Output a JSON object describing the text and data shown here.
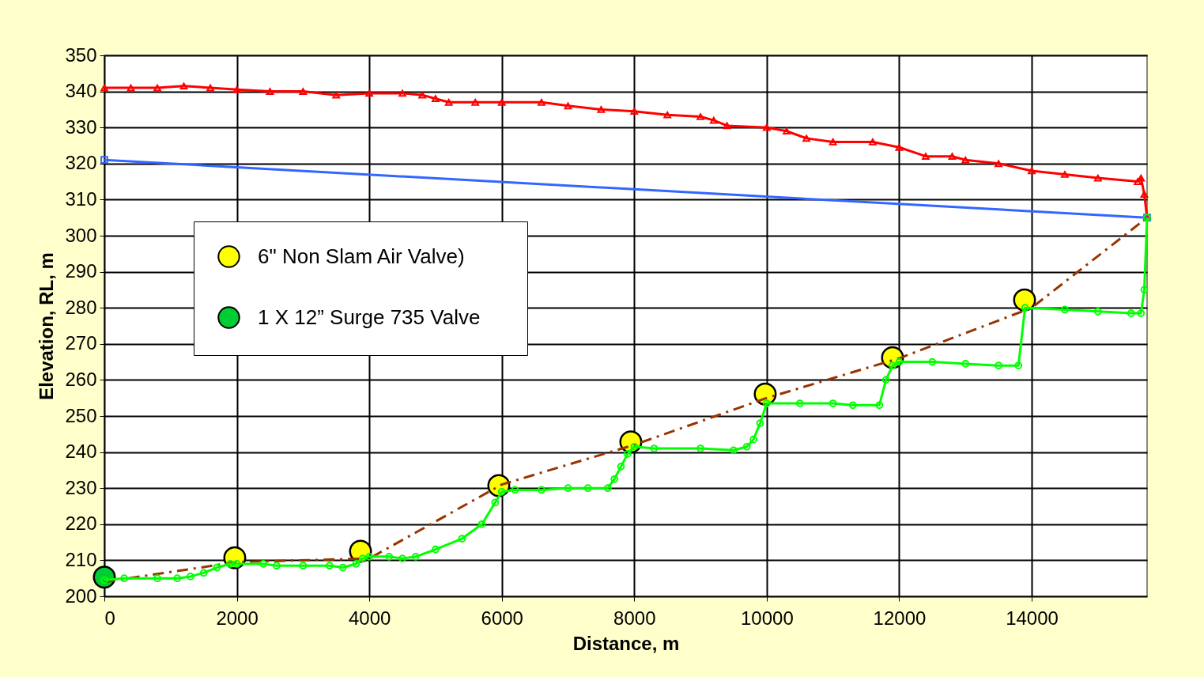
{
  "chart_data": {
    "type": "line",
    "xlabel": "Distance, m",
    "ylabel": "Elevation, RL, m",
    "xlim": [
      0,
      15742
    ],
    "ylim": [
      200,
      350
    ],
    "xticks": [
      0,
      2000,
      4000,
      6000,
      8000,
      10000,
      12000,
      14000
    ],
    "yticks": [
      200,
      210,
      220,
      230,
      240,
      250,
      260,
      270,
      280,
      290,
      300,
      310,
      320,
      330,
      340,
      350
    ],
    "grid": true,
    "legend": "left",
    "series": [
      {
        "color": "#ff0000",
        "marker": "triangle",
        "line_style": "solid",
        "x": [
          0,
          400,
          800,
          1200,
          1600,
          2000,
          2500,
          3000,
          3500,
          4000,
          4500,
          4800,
          5000,
          5200,
          5600,
          6000,
          6600,
          7000,
          7500,
          8000,
          8500,
          9000,
          9200,
          9400,
          10000,
          10300,
          10600,
          11000,
          11600,
          12000,
          12400,
          12800,
          13000,
          13500,
          14000,
          14500,
          15000,
          15600,
          15650,
          15700,
          15742
        ],
        "values": [
          341,
          341,
          341,
          341.5,
          341,
          340.5,
          340,
          340,
          339,
          339.5,
          339.5,
          339,
          338,
          337,
          337,
          337,
          337,
          336,
          335,
          334.5,
          333.5,
          333,
          332,
          330.5,
          330,
          329,
          327,
          326,
          326,
          324.5,
          322,
          322,
          321,
          320,
          318,
          317,
          316,
          315,
          316,
          311.5,
          305
        ]
      },
      {
        "color": "#3366ff",
        "marker": "square",
        "line_style": "solid",
        "x": [
          0,
          15742
        ],
        "values": [
          321,
          305
        ]
      },
      {
        "color": "#993300",
        "marker": "none",
        "line_style": "dashed",
        "x": [
          0,
          2000,
          4000,
          6000,
          8000,
          10000,
          12000,
          14000,
          15742
        ],
        "values": [
          204,
          209.5,
          210.5,
          231,
          242,
          255,
          266,
          280,
          305
        ]
      },
      {
        "color": "#00ff00",
        "marker": "circle",
        "line_style": "solid",
        "x": [
          0,
          300,
          800,
          1100,
          1300,
          1500,
          1700,
          1900,
          2000,
          2400,
          2600,
          3000,
          3400,
          3600,
          3800,
          3900,
          4000,
          4300,
          4500,
          4700,
          5000,
          5400,
          5700,
          5900,
          6000,
          6200,
          6600,
          7000,
          7300,
          7600,
          7700,
          7800,
          7900,
          8000,
          8300,
          9000,
          9500,
          9700,
          9800,
          9900,
          10000,
          10500,
          11000,
          11300,
          11700,
          11800,
          11900,
          12000,
          12500,
          13000,
          13500,
          13800,
          13900,
          14500,
          15000,
          15500,
          15650,
          15700,
          15742
        ],
        "values": [
          204.5,
          205,
          205,
          205,
          205.5,
          206.5,
          208,
          209,
          209,
          209,
          208.5,
          208.5,
          208.5,
          208,
          209,
          210.5,
          211,
          211,
          210.5,
          211,
          213,
          216,
          220,
          226,
          229,
          229.5,
          229.5,
          230,
          230,
          230,
          232.5,
          236,
          239.5,
          241.5,
          241,
          241,
          240.5,
          241.5,
          243.5,
          248,
          253.5,
          253.5,
          253.5,
          253,
          253,
          260,
          264,
          265,
          265,
          264.5,
          264,
          264,
          280,
          279.5,
          279,
          278.5,
          278.5,
          285,
          305
        ]
      },
      {
        "type": "scatter",
        "name": "6\" Non Slam Air Valve)",
        "color": "#ffff00",
        "marker": "circle",
        "x": [
          1969,
          3867,
          5955,
          7948,
          9977,
          11899,
          13892
        ],
        "values": [
          210.7,
          212.5,
          230.7,
          242.8,
          256.1,
          266.2,
          282.2
        ]
      },
      {
        "type": "scatter",
        "name": "1  X   12”  Surge 735 Valve",
        "color": "#00cc33",
        "marker": "circle",
        "x": [
          0
        ],
        "values": [
          205.3
        ]
      }
    ]
  }
}
